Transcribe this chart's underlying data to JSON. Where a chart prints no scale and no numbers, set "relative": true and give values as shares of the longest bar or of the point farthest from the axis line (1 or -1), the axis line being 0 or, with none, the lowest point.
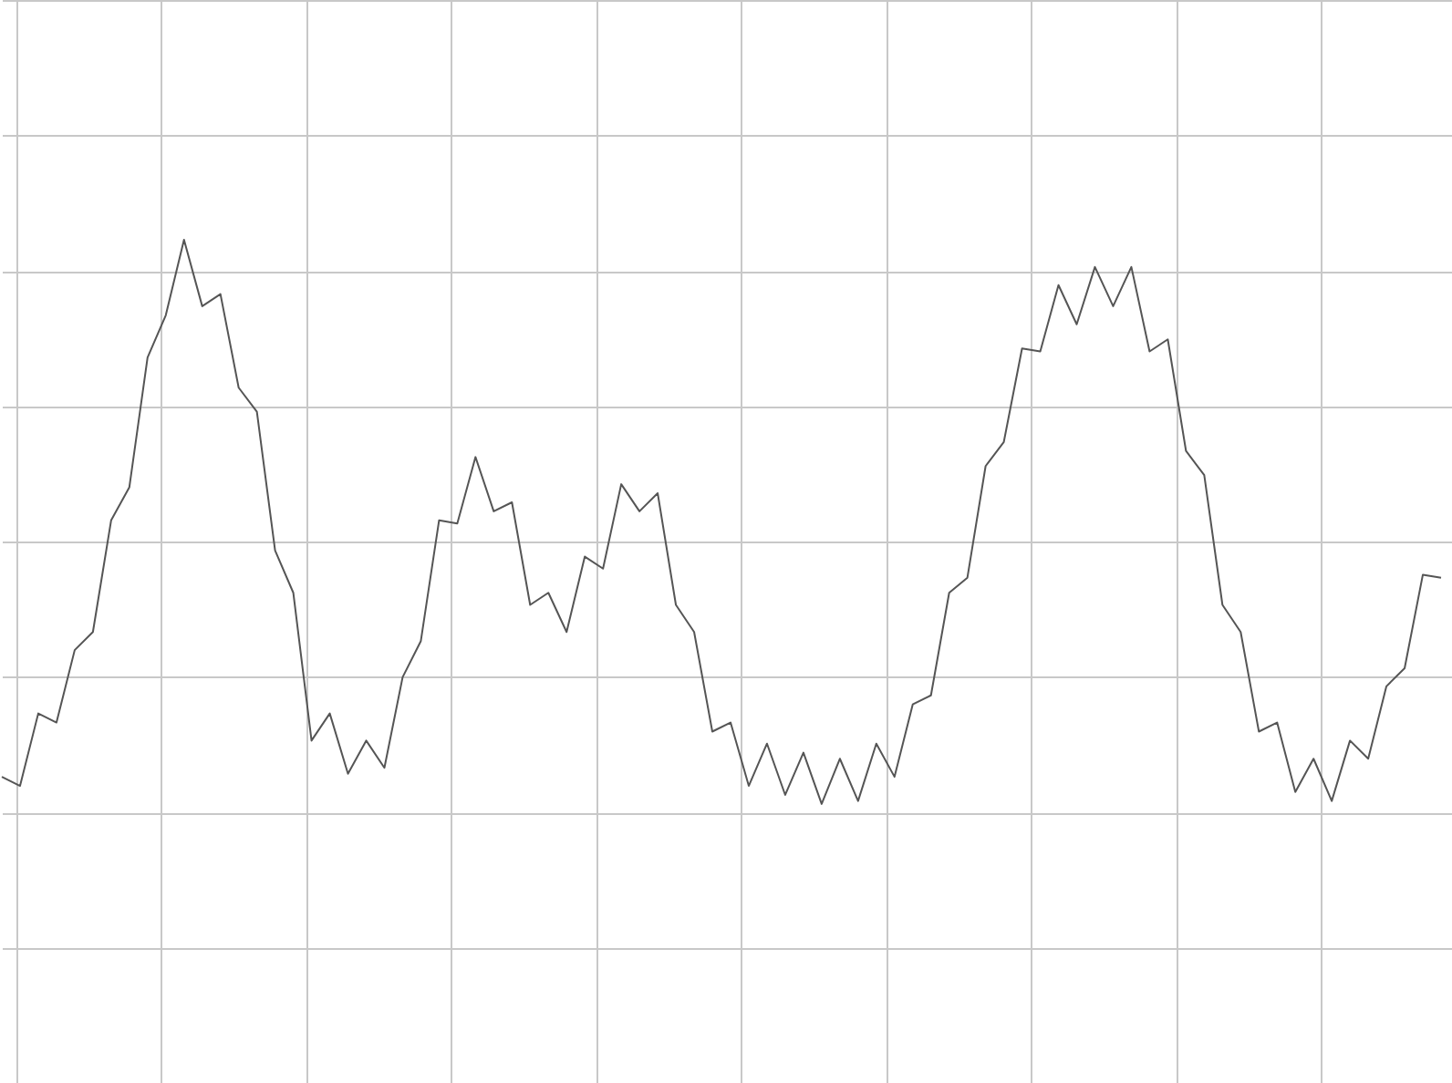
{
  "chart_data": {
    "type": "line",
    "relative": true,
    "grid": true,
    "color": "#555555",
    "categories": [
      null,
      null,
      null,
      null,
      null,
      null,
      null,
      null,
      null,
      null,
      null,
      null,
      null,
      null,
      null,
      null,
      null,
      null,
      null,
      null,
      null,
      null,
      null,
      null,
      null,
      null,
      null,
      null,
      null,
      null,
      null,
      null,
      null,
      null,
      null,
      null,
      null,
      null,
      null,
      null,
      null,
      null,
      null,
      null,
      null,
      null,
      null,
      null,
      null,
      null,
      null,
      null,
      null,
      null,
      null,
      null,
      null,
      null,
      null,
      null,
      null,
      null,
      null,
      null,
      null,
      null,
      null,
      null,
      null,
      null,
      null,
      null,
      null,
      null,
      null,
      null,
      null,
      null,
      null,
      null
    ],
    "values": [
      -0.78,
      -0.81,
      -0.57,
      -0.6,
      -0.36,
      -0.3,
      0.07,
      0.18,
      0.61,
      0.75,
      1,
      0.78,
      0.82,
      0.51,
      0.43,
      -0.03,
      -0.17,
      -0.66,
      -0.57,
      -0.77,
      -0.66,
      -0.75,
      -0.45,
      -0.33,
      0.07,
      0.06,
      0.28,
      0.1,
      0.13,
      -0.21,
      -0.17,
      -0.3,
      -0.05,
      -0.09,
      0.19,
      0.1,
      0.16,
      -0.21,
      -0.3,
      -0.63,
      -0.6,
      -0.81,
      -0.67,
      -0.84,
      -0.7,
      -0.87,
      -0.72,
      -0.86,
      -0.67,
      -0.78,
      -0.54,
      -0.51,
      -0.17,
      -0.12,
      0.25,
      0.33,
      0.64,
      0.63,
      0.85,
      0.72,
      0.91,
      0.78,
      0.91,
      0.63,
      0.67,
      0.3,
      0.22,
      -0.21,
      -0.3,
      -0.63,
      -0.6,
      -0.83,
      -0.72,
      -0.86,
      -0.66,
      -0.72,
      -0.48,
      -0.42,
      -0.11,
      -0.12
    ]
  }
}
